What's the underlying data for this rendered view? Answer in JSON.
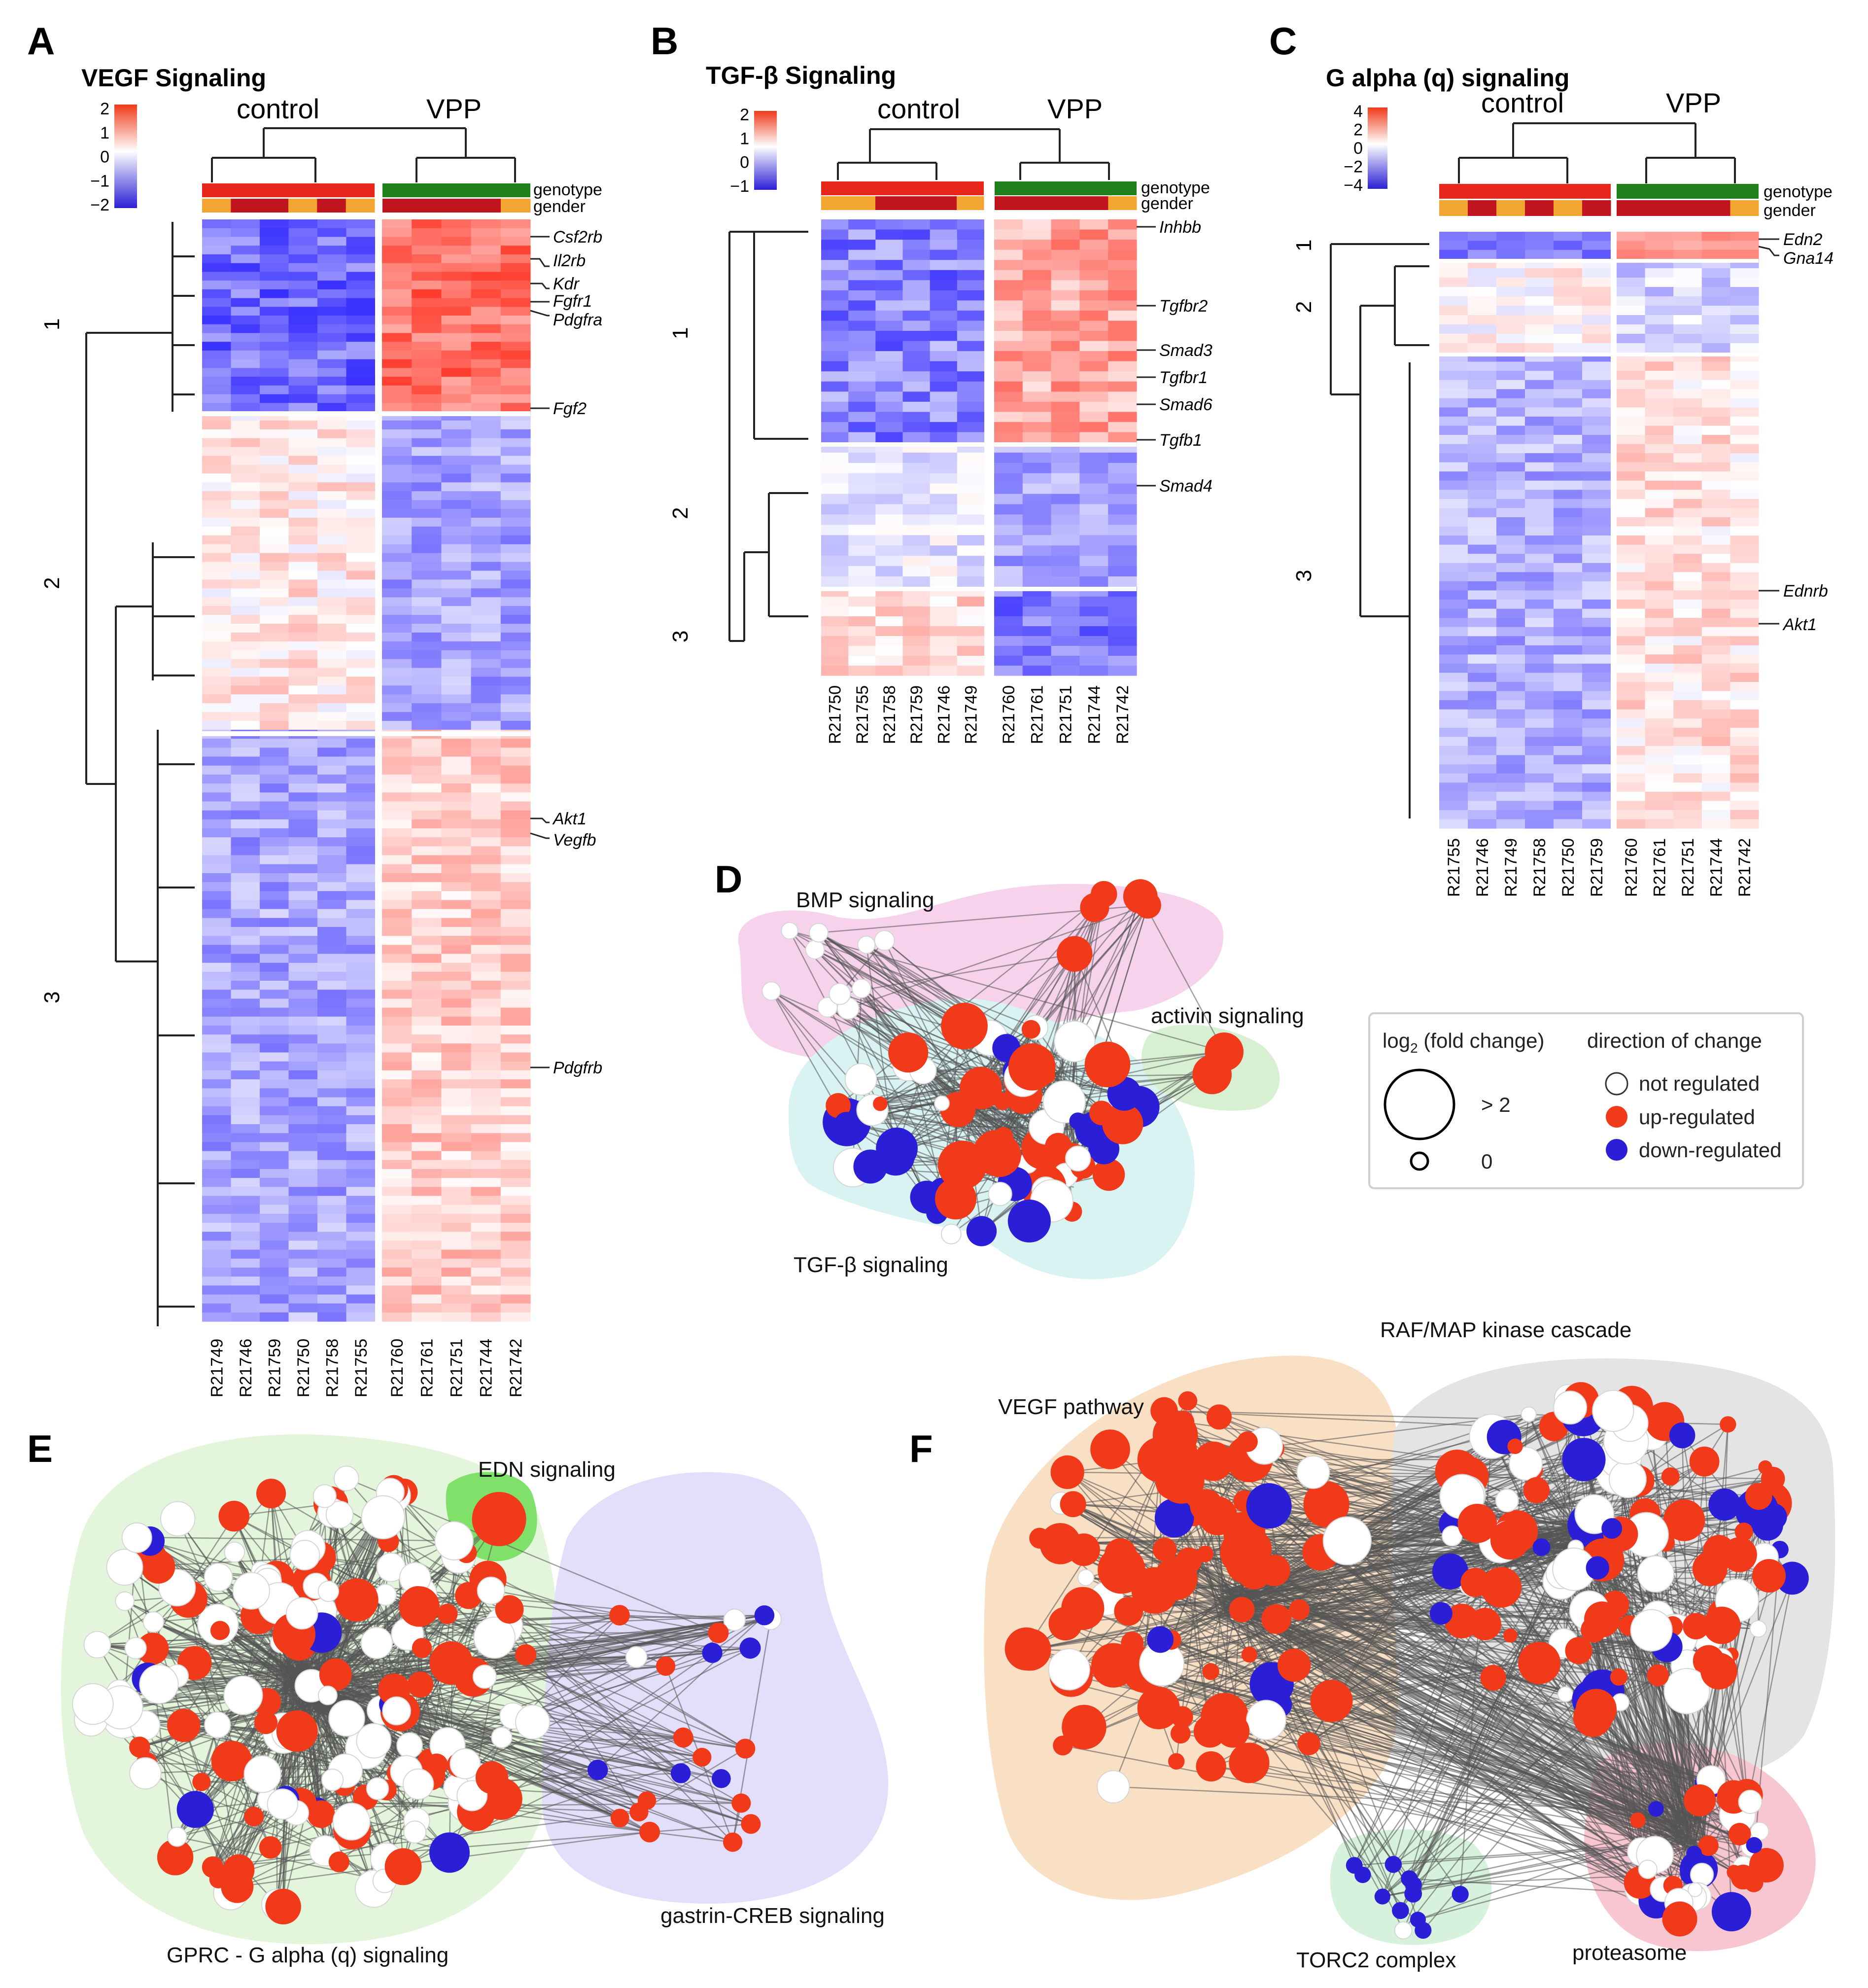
{
  "panels": {
    "A": {
      "label": "A",
      "title": "VEGF Signaling",
      "scale": [
        "2",
        "1",
        "0",
        "−1",
        "−2"
      ],
      "groups": [
        "control",
        "VPP"
      ],
      "tracks": [
        "genotype",
        "gender"
      ],
      "genes": [
        "Csf2rb",
        "Il2rb",
        "Kdr",
        "Fgfr1",
        "Pdgfra",
        "Fgf2",
        "Akt1",
        "Vegfb",
        "Pdgfrb"
      ],
      "clusters": [
        "1",
        "2",
        "3"
      ],
      "samples": [
        "R21749",
        "R21746",
        "R21759",
        "R21750",
        "R21758",
        "R21755",
        "R21760",
        "R21761",
        "R21751",
        "R21744",
        "R21742"
      ]
    },
    "B": {
      "label": "B",
      "title": "TGF-β Signaling",
      "scale": [
        "2",
        "1",
        "0",
        "−1"
      ],
      "groups": [
        "control",
        "VPP"
      ],
      "tracks": [
        "genotype",
        "gender"
      ],
      "genes": [
        "Inhbb",
        "Tgfbr2",
        "Smad3",
        "Tgfbr1",
        "Smad6",
        "Tgfb1",
        "Smad4"
      ],
      "clusters": [
        "1",
        "2",
        "3"
      ],
      "samples": [
        "R21750",
        "R21755",
        "R21758",
        "R21759",
        "R21746",
        "R21749",
        "R21760",
        "R21761",
        "R21751",
        "R21744",
        "R21742"
      ]
    },
    "C": {
      "label": "C",
      "title": "G alpha (q) signaling",
      "scale": [
        "4",
        "2",
        "0",
        "−2",
        "−4"
      ],
      "groups": [
        "control",
        "VPP"
      ],
      "tracks": [
        "genotype",
        "gender"
      ],
      "genes": [
        "Edn2",
        "Gna14",
        "Ednrb",
        "Akt1"
      ],
      "clusters": [
        "1",
        "2",
        "3"
      ],
      "samples": [
        "R21755",
        "R21746",
        "R21749",
        "R21758",
        "R21750",
        "R21759",
        "R21760",
        "R21761",
        "R21751",
        "R21744",
        "R21742"
      ]
    },
    "D": {
      "label": "D",
      "modules": [
        "BMP signaling",
        "activin signaling",
        "TGF-β signaling"
      ]
    },
    "E": {
      "label": "E",
      "modules": [
        "EDN signaling",
        "GPRC - G alpha (q) signaling",
        "gastrin-CREB signaling"
      ]
    },
    "F": {
      "label": "F",
      "modules": [
        "RAF/MAP kinase cascade",
        "VEGF pathway",
        "TORC2 complex",
        "proteasome"
      ]
    }
  },
  "legend": {
    "size_title_main": "log",
    "size_title_sub": "2",
    "size_title_rest": " (fold change)",
    "size_large": "> 2",
    "size_small": "0",
    "color_title": "direction of change",
    "items": [
      "not regulated",
      "up-regulated",
      "down-regulated"
    ]
  },
  "colors": {
    "up": "#f03a1a",
    "down": "#2a1fd6",
    "neutral": "#ffffff",
    "genotype_control": "#e8261c",
    "genotype_vpp": "#1f7f1a",
    "gender_female": "#f2a531",
    "gender_male": "#c0141e",
    "bmp_bg": "#f7d2ec",
    "tgf_bg": "#d9f2f2",
    "activin_bg": "#d7f0d2",
    "gprc_bg": "#e3f5db",
    "edn_bg": "#7fe06a",
    "gastrin_bg": "#e3defa",
    "vegf_bg": "#f9dfc4",
    "raf_bg": "#e4e4e4",
    "torc2_bg": "#d6f2dc",
    "proteasome_bg": "#f7c6d0"
  }
}
